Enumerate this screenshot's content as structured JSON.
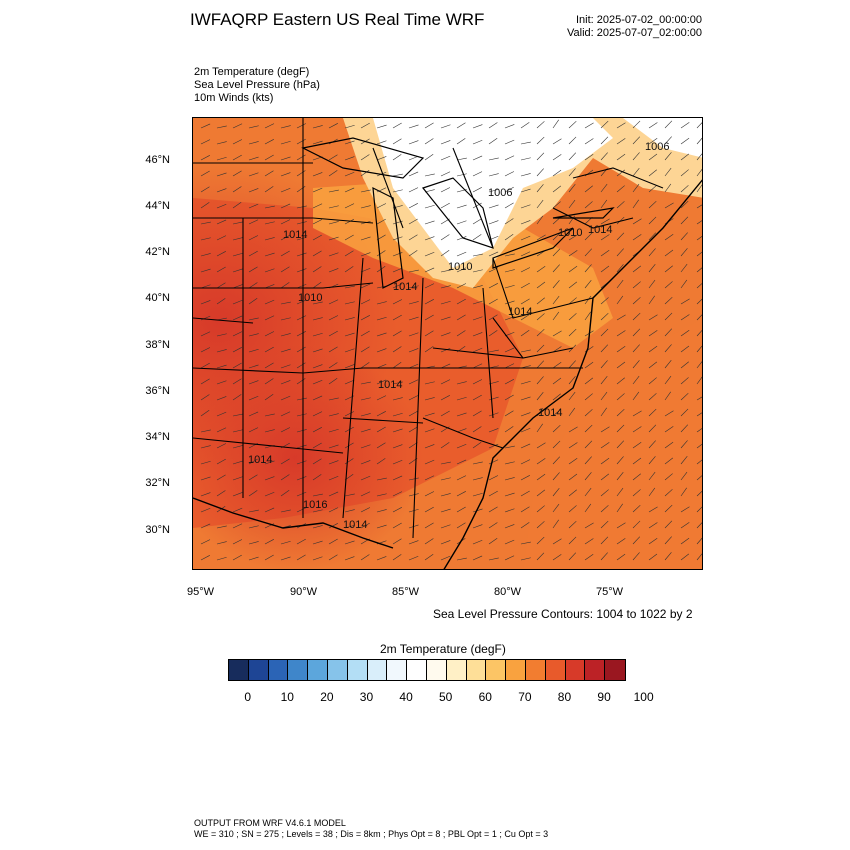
{
  "header": {
    "title": "IWFAQRP Eastern US Real Time WRF",
    "init": "Init: 2025-07-02_00:00:00",
    "valid": "Valid: 2025-07-07_02:00:00"
  },
  "fields": [
    "2m Temperature   (degF)",
    "Sea Level Pressure   (hPa)",
    "10m Winds   (kts)"
  ],
  "map": {
    "lat_labels": [
      "46°N",
      "44°N",
      "42°N",
      "40°N",
      "38°N",
      "36°N",
      "34°N",
      "32°N",
      "30°N"
    ],
    "lon_labels": [
      "95°W",
      "90°W",
      "85°W",
      "80°W",
      "75°W"
    ],
    "pressure_labels": [
      "1006",
      "1006",
      "1010",
      "1010",
      "1010",
      "1014",
      "1014",
      "1014",
      "1014",
      "1014",
      "1016",
      "1014",
      "1014",
      "1014"
    ],
    "colors": {
      "hot": "#e0462a",
      "warm": "#f07a33",
      "mild": "#f6a44a",
      "cool": "#fde3b0",
      "cold": "#ffffff",
      "land_line": "#000000"
    }
  },
  "contour_note": "Sea Level Pressure Contours: 1004 to 1022 by 2",
  "colorbar": {
    "title": "2m Temperature  (degF)",
    "labels": [
      "0",
      "10",
      "20",
      "30",
      "40",
      "50",
      "60",
      "70",
      "80",
      "90",
      "100"
    ],
    "colors": [
      "#172c5c",
      "#1e4595",
      "#2b64b6",
      "#3f86ca",
      "#5ca6dc",
      "#86c3ea",
      "#b3def5",
      "#d9eefa",
      "#f1f8fd",
      "#ffffff",
      "#fffaee",
      "#fff0c6",
      "#fedf98",
      "#fcc565",
      "#f9a23f",
      "#f27d30",
      "#e85a2b",
      "#d73a29",
      "#bc2226",
      "#9a1720"
    ]
  },
  "footer": {
    "line1": "OUTPUT FROM WRF V4.6.1 MODEL",
    "line2": "WE = 310 ; SN = 275 ; Levels = 38 ; Dis = 8km ; Phys Opt = 8 ; PBL Opt = 1 ; Cu Opt = 3"
  }
}
